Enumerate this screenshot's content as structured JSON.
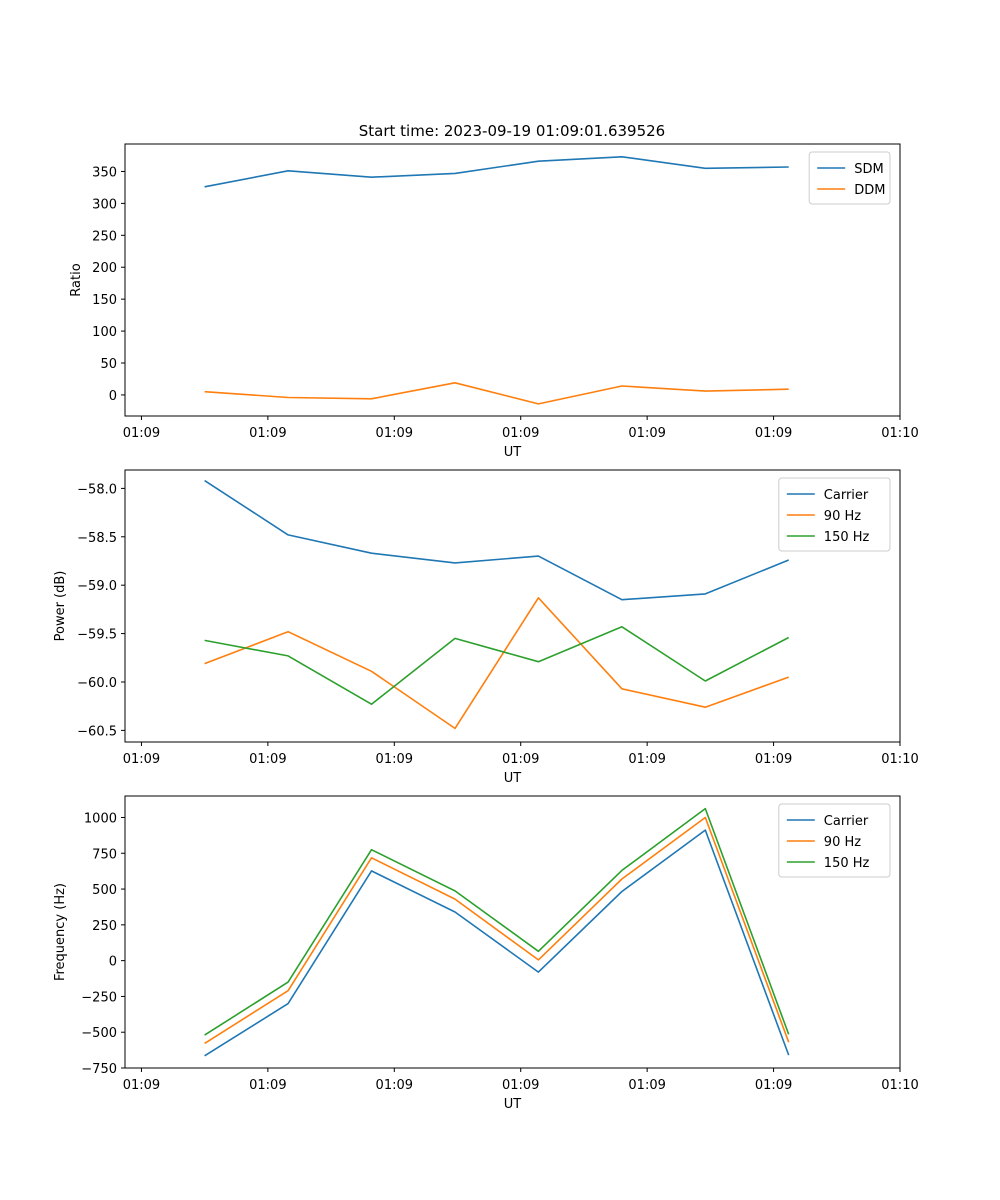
{
  "figure": {
    "title": "Start time: 2023-09-19 01:09:01.639526"
  },
  "chart_data": [
    {
      "type": "line",
      "title": "Start time: 2023-09-19 01:09:01.639526",
      "xlabel": "UT",
      "ylabel": "Ratio",
      "x_ticks": [
        "01:09",
        "01:09",
        "01:09",
        "01:09",
        "01:09",
        "01:09",
        "01:10"
      ],
      "x_tick_positions": [
        0,
        1,
        2,
        3,
        4,
        5,
        6
      ],
      "xlim": [
        -0.13,
        6.0
      ],
      "x": [
        0.5,
        1.16,
        1.82,
        2.48,
        3.14,
        3.8,
        4.46,
        5.12
      ],
      "ylim": [
        -33,
        393
      ],
      "y_ticks": [
        0,
        50,
        100,
        150,
        200,
        250,
        300,
        350
      ],
      "legend": "top-right",
      "series": [
        {
          "name": "SDM",
          "color": "#1f77b4",
          "values": [
            326,
            351,
            341,
            347,
            366,
            373,
            355,
            357
          ]
        },
        {
          "name": "DDM",
          "color": "#ff7f0e",
          "values": [
            5,
            -4,
            -6,
            19,
            -14,
            14,
            6,
            9
          ]
        }
      ]
    },
    {
      "type": "line",
      "title": "",
      "xlabel": "UT",
      "ylabel": "Power (dB)",
      "x_ticks": [
        "01:09",
        "01:09",
        "01:09",
        "01:09",
        "01:09",
        "01:09",
        "01:10"
      ],
      "x_tick_positions": [
        0,
        1,
        2,
        3,
        4,
        5,
        6
      ],
      "xlim": [
        -0.13,
        6.0
      ],
      "x": [
        0.5,
        1.16,
        1.82,
        2.48,
        3.14,
        3.8,
        4.46,
        5.12
      ],
      "ylim": [
        -60.62,
        -57.81
      ],
      "y_ticks": [
        -60.5,
        -60.0,
        -59.5,
        -59.0,
        -58.5,
        -58.0
      ],
      "y_tick_labels": [
        "−60.5",
        "−60.0",
        "−59.5",
        "−59.0",
        "−58.5",
        "−58.0"
      ],
      "legend": "top-right",
      "series": [
        {
          "name": "Carrier",
          "color": "#1f77b4",
          "values": [
            -57.92,
            -58.48,
            -58.67,
            -58.77,
            -58.7,
            -59.15,
            -59.09,
            -58.74
          ]
        },
        {
          "name": "90 Hz",
          "color": "#ff7f0e",
          "values": [
            -59.81,
            -59.48,
            -59.89,
            -60.48,
            -59.13,
            -60.07,
            -60.26,
            -59.95
          ]
        },
        {
          "name": "150 Hz",
          "color": "#2ca02c",
          "values": [
            -59.57,
            -59.73,
            -60.23,
            -59.55,
            -59.79,
            -59.43,
            -59.99,
            -59.54
          ]
        }
      ]
    },
    {
      "type": "line",
      "title": "",
      "xlabel": "UT",
      "ylabel": "Frequency (Hz)",
      "x_ticks": [
        "01:09",
        "01:09",
        "01:09",
        "01:09",
        "01:09",
        "01:09",
        "01:10"
      ],
      "x_tick_positions": [
        0,
        1,
        2,
        3,
        4,
        5,
        6
      ],
      "xlim": [
        -0.13,
        6.0
      ],
      "x": [
        0.5,
        1.16,
        1.82,
        2.48,
        3.14,
        3.8,
        4.46,
        5.12
      ],
      "ylim": [
        -750,
        1150
      ],
      "y_ticks": [
        -750,
        -500,
        -250,
        0,
        250,
        500,
        750,
        1000
      ],
      "y_tick_labels": [
        "−750",
        "−500",
        "−250",
        "0",
        "250",
        "500",
        "750",
        "1000"
      ],
      "legend": "top-right",
      "series": [
        {
          "name": "Carrier",
          "color": "#1f77b4",
          "values": [
            -665,
            -300,
            627,
            340,
            -80,
            483,
            912,
            -660
          ]
        },
        {
          "name": "90 Hz",
          "color": "#ff7f0e",
          "values": [
            -578,
            -210,
            718,
            430,
            5,
            570,
            1000,
            -570
          ]
        },
        {
          "name": "150 Hz",
          "color": "#2ca02c",
          "values": [
            -520,
            -150,
            775,
            487,
            65,
            630,
            1062,
            -515
          ]
        }
      ]
    }
  ]
}
